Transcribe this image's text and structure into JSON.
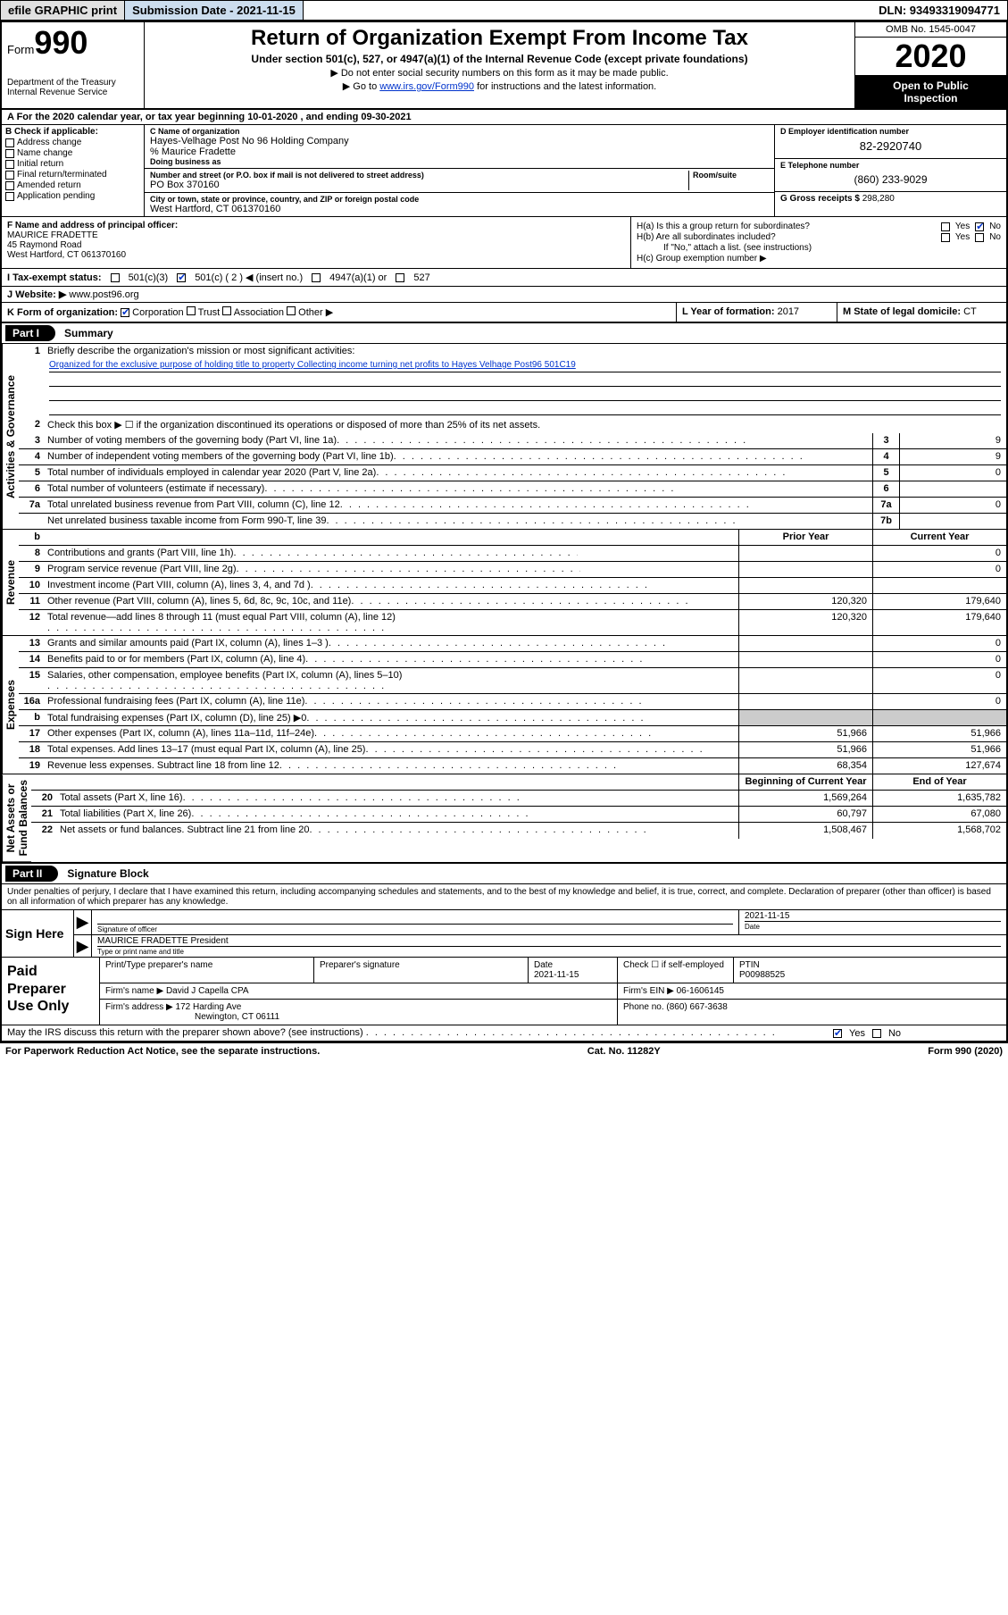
{
  "topbar": {
    "efile": "efile GRAPHIC print",
    "submission": "Submission Date - 2021-11-15",
    "dln": "DLN: 93493319094771"
  },
  "header": {
    "form_prefix": "Form",
    "form_number": "990",
    "dept1": "Department of the Treasury",
    "dept2": "Internal Revenue Service",
    "title": "Return of Organization Exempt From Income Tax",
    "subtitle": "Under section 501(c), 527, or 4947(a)(1) of the Internal Revenue Code (except private foundations)",
    "note1": "▶ Do not enter social security numbers on this form as it may be made public.",
    "note2_pre": "▶ Go to ",
    "note2_link": "www.irs.gov/Form990",
    "note2_post": " for instructions and the latest information.",
    "omb": "OMB No. 1545-0047",
    "year": "2020",
    "inspection1": "Open to Public",
    "inspection2": "Inspection"
  },
  "section_a": "A For the 2020 calendar year, or tax year beginning 10-01-2020    , and ending 09-30-2021",
  "box_b": {
    "header": "B Check if applicable:",
    "items": [
      "Address change",
      "Name change",
      "Initial return",
      "Final return/terminated",
      "Amended return",
      "Application pending"
    ]
  },
  "box_c": {
    "label": "C Name of organization",
    "name": "Hayes-Velhage Post No 96 Holding Company",
    "care_of": "% Maurice Fradette",
    "dba_label": "Doing business as",
    "street_label": "Number and street (or P.O. box if mail is not delivered to street address)",
    "room_label": "Room/suite",
    "street": "PO Box 370160",
    "city_label": "City or town, state or province, country, and ZIP or foreign postal code",
    "city": "West Hartford, CT  061370160"
  },
  "box_d": {
    "label": "D Employer identification number",
    "value": "82-2920740"
  },
  "box_e": {
    "label": "E Telephone number",
    "value": "(860) 233-9029"
  },
  "box_g": {
    "label": "G Gross receipts $",
    "value": "298,280"
  },
  "box_f": {
    "label": "F  Name and address of principal officer:",
    "name": "MAURICE FRADETTE",
    "addr1": "45 Raymond Road",
    "addr2": "West Hartford, CT  061370160"
  },
  "box_h": {
    "ha": "H(a)  Is this a group return for subordinates?",
    "hb": "H(b)  Are all subordinates included?",
    "hb_note": "If \"No,\" attach a list. (see instructions)",
    "hc": "H(c)  Group exemption number ▶",
    "yes": "Yes",
    "no": "No"
  },
  "box_i": {
    "label": "I  Tax-exempt status:",
    "opts": [
      "501(c)(3)",
      "501(c) ( 2 ) ◀ (insert no.)",
      "4947(a)(1) or",
      "527"
    ]
  },
  "box_j": {
    "label": "J   Website: ▶",
    "value": "www.post96.org"
  },
  "box_k": {
    "label": "K Form of organization:",
    "opts": [
      "Corporation",
      "Trust",
      "Association",
      "Other ▶"
    ]
  },
  "box_l": {
    "label": "L Year of formation:",
    "value": "2017"
  },
  "box_m": {
    "label": "M State of legal domicile:",
    "value": "CT"
  },
  "part1": {
    "label": "Part I",
    "title": "Summary"
  },
  "summary": {
    "l1_label": "1",
    "l1_text": "Briefly describe the organization's mission or most significant activities:",
    "l1_mission": "Organized for the exclusive purpose of holding title to property Collecting income turning net profits to Hayes Velhage Post96 501C19",
    "l2": "Check this box ▶ ☐  if the organization discontinued its operations or disposed of more than 25% of its net assets.",
    "rows_num": [
      {
        "n": "3",
        "t": "Number of voting members of the governing body (Part VI, line 1a)",
        "box": "3",
        "v": "9"
      },
      {
        "n": "4",
        "t": "Number of independent voting members of the governing body (Part VI, line 1b)",
        "box": "4",
        "v": "9"
      },
      {
        "n": "5",
        "t": "Total number of individuals employed in calendar year 2020 (Part V, line 2a)",
        "box": "5",
        "v": "0"
      },
      {
        "n": "6",
        "t": "Total number of volunteers (estimate if necessary)",
        "box": "6",
        "v": ""
      },
      {
        "n": "7a",
        "t": "Total unrelated business revenue from Part VIII, column (C), line 12",
        "box": "7a",
        "v": "0"
      },
      {
        "n": "",
        "t": "Net unrelated business taxable income from Form 990-T, line 39",
        "box": "7b",
        "v": ""
      }
    ],
    "col_headers": {
      "b": "b",
      "prior": "Prior Year",
      "curr": "Current Year"
    },
    "rev": [
      {
        "n": "8",
        "t": "Contributions and grants (Part VIII, line 1h)",
        "p": "",
        "c": "0"
      },
      {
        "n": "9",
        "t": "Program service revenue (Part VIII, line 2g)",
        "p": "",
        "c": "0"
      },
      {
        "n": "10",
        "t": "Investment income (Part VIII, column (A), lines 3, 4, and 7d )",
        "p": "",
        "c": ""
      },
      {
        "n": "11",
        "t": "Other revenue (Part VIII, column (A), lines 5, 6d, 8c, 9c, 10c, and 11e)",
        "p": "120,320",
        "c": "179,640"
      },
      {
        "n": "12",
        "t": "Total revenue—add lines 8 through 11 (must equal Part VIII, column (A), line 12)",
        "p": "120,320",
        "c": "179,640"
      }
    ],
    "exp": [
      {
        "n": "13",
        "t": "Grants and similar amounts paid (Part IX, column (A), lines 1–3 )",
        "p": "",
        "c": "0"
      },
      {
        "n": "14",
        "t": "Benefits paid to or for members (Part IX, column (A), line 4)",
        "p": "",
        "c": "0"
      },
      {
        "n": "15",
        "t": "Salaries, other compensation, employee benefits (Part IX, column (A), lines 5–10)",
        "p": "",
        "c": "0"
      },
      {
        "n": "16a",
        "t": "Professional fundraising fees (Part IX, column (A), line 11e)",
        "p": "",
        "c": "0"
      },
      {
        "n": "b",
        "t": "Total fundraising expenses (Part IX, column (D), line 25) ▶0",
        "p": "shade",
        "c": "shade"
      },
      {
        "n": "17",
        "t": "Other expenses (Part IX, column (A), lines 11a–11d, 11f–24e)",
        "p": "51,966",
        "c": "51,966"
      },
      {
        "n": "18",
        "t": "Total expenses. Add lines 13–17 (must equal Part IX, column (A), line 25)",
        "p": "51,966",
        "c": "51,966"
      },
      {
        "n": "19",
        "t": "Revenue less expenses. Subtract line 18 from line 12",
        "p": "68,354",
        "c": "127,674"
      }
    ],
    "net_headers": {
      "prior": "Beginning of Current Year",
      "curr": "End of Year"
    },
    "net": [
      {
        "n": "20",
        "t": "Total assets (Part X, line 16)",
        "p": "1,569,264",
        "c": "1,635,782"
      },
      {
        "n": "21",
        "t": "Total liabilities (Part X, line 26)",
        "p": "60,797",
        "c": "67,080"
      },
      {
        "n": "22",
        "t": "Net assets or fund balances. Subtract line 21 from line 20",
        "p": "1,508,467",
        "c": "1,568,702"
      }
    ]
  },
  "vtabs": {
    "gov": "Activities & Governance",
    "rev": "Revenue",
    "exp": "Expenses",
    "net": "Net Assets or\nFund Balances"
  },
  "part2": {
    "label": "Part II",
    "title": "Signature Block"
  },
  "perjury": "Under penalties of perjury, I declare that I have examined this return, including accompanying schedules and statements, and to the best of my knowledge and belief, it is true, correct, and complete. Declaration of preparer (other than officer) is based on all information of which preparer has any knowledge.",
  "sign": {
    "here": "Sign Here",
    "sig_officer_lbl": "Signature of officer",
    "date_lbl": "Date",
    "date_val": "2021-11-15",
    "name": "MAURICE FRADETTE  President",
    "name_lbl": "Type or print name and title"
  },
  "paid": {
    "left": "Paid Preparer Use Only",
    "h1": "Print/Type preparer's name",
    "h2": "Preparer's signature",
    "h3_lbl": "Date",
    "h3_val": "2021-11-15",
    "h4_lbl": "Check ☐ if self-employed",
    "h5_lbl": "PTIN",
    "h5_val": "P00988525",
    "firm_name_lbl": "Firm's name      ▶",
    "firm_name": "David J Capella CPA",
    "firm_ein_lbl": "Firm's EIN ▶",
    "firm_ein": "06-1606145",
    "firm_addr_lbl": "Firm's address  ▶",
    "firm_addr1": "172 Harding Ave",
    "firm_addr2": "Newington, CT  06111",
    "phone_lbl": "Phone no.",
    "phone": "(860) 667-3638"
  },
  "discuss": {
    "text": "May the IRS discuss this return with the preparer shown above? (see instructions)",
    "yes": "Yes",
    "no": "No"
  },
  "footer": {
    "left": "For Paperwork Reduction Act Notice, see the separate instructions.",
    "center": "Cat. No. 11282Y",
    "right": "Form 990 (2020)"
  },
  "colors": {
    "link": "#0033cc",
    "topbar_bg": "#cde0f0",
    "shade": "#cccccc"
  }
}
